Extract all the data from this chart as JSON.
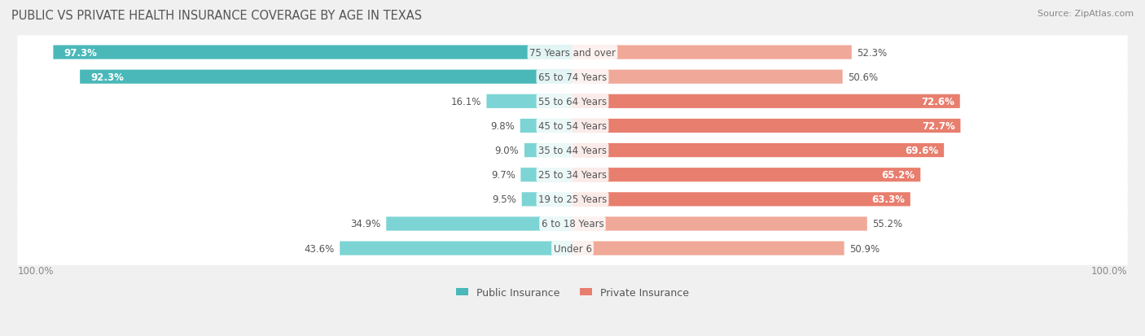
{
  "title": "PUBLIC VS PRIVATE HEALTH INSURANCE COVERAGE BY AGE IN TEXAS",
  "source": "Source: ZipAtlas.com",
  "categories": [
    "Under 6",
    "6 to 18 Years",
    "19 to 25 Years",
    "25 to 34 Years",
    "35 to 44 Years",
    "45 to 54 Years",
    "55 to 64 Years",
    "65 to 74 Years",
    "75 Years and over"
  ],
  "public_values": [
    43.6,
    34.9,
    9.5,
    9.7,
    9.0,
    9.8,
    16.1,
    92.3,
    97.3
  ],
  "private_values": [
    50.9,
    55.2,
    63.3,
    65.2,
    69.6,
    72.7,
    72.6,
    50.6,
    52.3
  ],
  "public_color": "#4ab8b8",
  "private_color": "#e87e6e",
  "public_color_light": "#7dd4d4",
  "private_color_light": "#f0a898",
  "bg_color": "#f0f0f0",
  "row_bg_color": "#e8e8e8",
  "bar_height": 0.55,
  "label_fontsize": 8.5,
  "title_fontsize": 10.5,
  "legend_fontsize": 9,
  "source_fontsize": 8,
  "axis_label": "100.0%",
  "max_value": 100
}
